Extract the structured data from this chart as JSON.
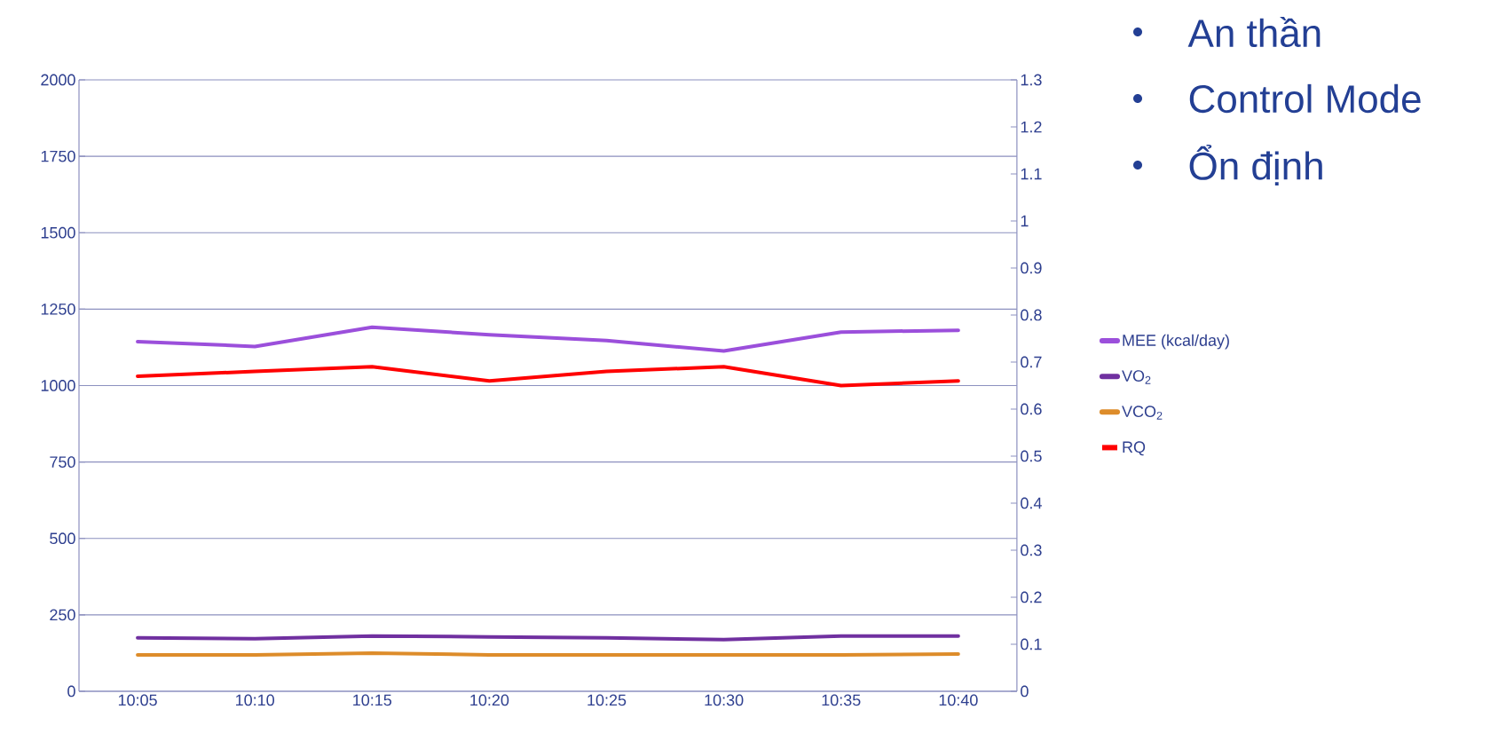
{
  "chart_data": {
    "type": "line",
    "categories": [
      "10:05",
      "10:10",
      "10:15",
      "10:20",
      "10:25",
      "10:30",
      "10:35",
      "10:40"
    ],
    "series": [
      {
        "name": "MEE (kcal/day)",
        "color": "#9b4fdb",
        "values": [
          1144,
          1128,
          1191,
          1166,
          1147,
          1113,
          1175,
          1181
        ]
      },
      {
        "name": "VO$_{2}$",
        "color": "#7030a0",
        "values": [
          175,
          172,
          181,
          178,
          175,
          169,
          181,
          181
        ]
      },
      {
        "name": "VCO$_{2}$",
        "color": "#dd8c2a",
        "values": [
          119,
          119,
          125,
          119,
          119,
          119,
          119,
          122
        ]
      },
      {
        "name": "RQ",
        "color": "#ff0000",
        "axis": "y2",
        "values": [
          0.67,
          0.68,
          0.69,
          0.66,
          0.68,
          0.69,
          0.65,
          0.66
        ]
      }
    ],
    "ylim": [
      0,
      2000
    ],
    "yticks": [
      0,
      250,
      500,
      750,
      1000,
      1250,
      1500,
      1750,
      2000
    ],
    "y2lim": [
      0,
      1.3
    ],
    "y2ticks": [
      0,
      0.1,
      0.2,
      0.3,
      0.4,
      0.5,
      0.6,
      0.7,
      0.8,
      0.9,
      1,
      1.1,
      1.2,
      1.3
    ],
    "grid": "y",
    "legend": "right",
    "marker": "none",
    "line_style": "solid",
    "annotations": [
      "An thần",
      "Control Mode",
      "Ổn định"
    ]
  }
}
